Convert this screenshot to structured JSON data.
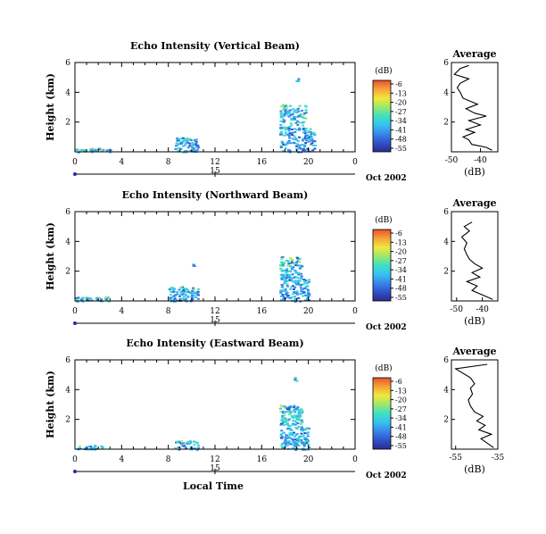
{
  "chart_data": {
    "type": "heatmap",
    "date_label": "Oct 2002",
    "xlabel_bottom": "Local Time",
    "day_label": "15",
    "x_ticks": [
      "0",
      "4",
      "8",
      "12",
      "16",
      "20",
      "0"
    ],
    "y_ticks": [
      "2",
      "4",
      "6"
    ],
    "ylabel": "Height (km)",
    "xlim": [
      0,
      24
    ],
    "ylim": [
      0,
      6
    ],
    "colorbar": {
      "unit": "(dB)",
      "ticks": [
        "-6",
        "-13",
        "-20",
        "-27",
        "-34",
        "-41",
        "-48",
        "-55"
      ],
      "range": [
        -55,
        -6
      ],
      "colors": [
        "#2b2b8f",
        "#2f52c8",
        "#3a86ea",
        "#36c3f0",
        "#3fe0c2",
        "#9be86c",
        "#f0e83a",
        "#f7a33b",
        "#e8502c"
      ]
    },
    "panels": [
      {
        "title": "Echo Intensity (Vertical Beam)",
        "echo_regions": [
          {
            "x_range": [
              0,
              3
            ],
            "y_range": [
              0,
              0.3
            ],
            "level": "-50 to -35 dB"
          },
          {
            "x_range": [
              8.5,
              10.5
            ],
            "y_range": [
              0,
              1.0
            ],
            "level": "-48 to -30 dB"
          },
          {
            "x_range": [
              17.5,
              20.5
            ],
            "y_range": [
              0,
              3.2
            ],
            "level": "-55 to -20 dB"
          },
          {
            "x_range": [
              18.8,
              19.2
            ],
            "y_range": [
              4.8,
              5.0
            ],
            "level": "-50 dB"
          }
        ],
        "average": {
          "title": "Average",
          "xlabel": "(dB)",
          "x_ticks": [
            "-50",
            "-40"
          ],
          "y_ticks": [
            "2",
            "4",
            "6"
          ],
          "xlim": [
            -50,
            -34
          ],
          "ylim": [
            0,
            6
          ],
          "profile": [
            {
              "dB": -36,
              "h": 0.1
            },
            {
              "dB": -38,
              "h": 0.3
            },
            {
              "dB": -43,
              "h": 0.5
            },
            {
              "dB": -44,
              "h": 0.8
            },
            {
              "dB": -46,
              "h": 1.0
            },
            {
              "dB": -42,
              "h": 1.3
            },
            {
              "dB": -45,
              "h": 1.5
            },
            {
              "dB": -40,
              "h": 1.8
            },
            {
              "dB": -44,
              "h": 2.1
            },
            {
              "dB": -38,
              "h": 2.4
            },
            {
              "dB": -42,
              "h": 2.6
            },
            {
              "dB": -45,
              "h": 2.9
            },
            {
              "dB": -41,
              "h": 3.2
            },
            {
              "dB": -46,
              "h": 3.6
            },
            {
              "dB": -47,
              "h": 4.0
            },
            {
              "dB": -48,
              "h": 4.3
            },
            {
              "dB": -47,
              "h": 4.6
            },
            {
              "dB": -44,
              "h": 4.9
            },
            {
              "dB": -49,
              "h": 5.2
            },
            {
              "dB": -47,
              "h": 5.6
            },
            {
              "dB": -44,
              "h": 5.8
            }
          ]
        }
      },
      {
        "title": "Echo Intensity (Northward Beam)",
        "echo_regions": [
          {
            "x_range": [
              0,
              3
            ],
            "y_range": [
              0,
              0.3
            ],
            "level": "-50 to -40 dB"
          },
          {
            "x_range": [
              8.0,
              10.5
            ],
            "y_range": [
              0,
              1.0
            ],
            "level": "-48 to -30 dB"
          },
          {
            "x_range": [
              17.5,
              20.0
            ],
            "y_range": [
              0,
              3.0
            ],
            "level": "-55 to -25 dB"
          },
          {
            "x_range": [
              10.0,
              10.2
            ],
            "y_range": [
              2.4,
              2.5
            ],
            "level": "-50 dB"
          }
        ],
        "average": {
          "title": "Average",
          "xlabel": "(dB)",
          "x_ticks": [
            "-50",
            "-40"
          ],
          "y_ticks": [
            "2",
            "4",
            "6"
          ],
          "xlim": [
            -52,
            -34
          ],
          "ylim": [
            0,
            6
          ],
          "profile": [
            {
              "dB": -36,
              "h": 0.1
            },
            {
              "dB": -40,
              "h": 0.4
            },
            {
              "dB": -44,
              "h": 0.7
            },
            {
              "dB": -42,
              "h": 1.0
            },
            {
              "dB": -46,
              "h": 1.3
            },
            {
              "dB": -41,
              "h": 1.6
            },
            {
              "dB": -44,
              "h": 1.9
            },
            {
              "dB": -40,
              "h": 2.2
            },
            {
              "dB": -43,
              "h": 2.5
            },
            {
              "dB": -45,
              "h": 2.8
            },
            {
              "dB": -46,
              "h": 3.1
            },
            {
              "dB": -47,
              "h": 3.5
            },
            {
              "dB": -46,
              "h": 3.9
            },
            {
              "dB": -48,
              "h": 4.3
            },
            {
              "dB": -45,
              "h": 4.7
            },
            {
              "dB": -47,
              "h": 5.0
            },
            {
              "dB": -44,
              "h": 5.3
            }
          ]
        }
      },
      {
        "title": "Echo Intensity (Eastward Beam)",
        "echo_regions": [
          {
            "x_range": [
              0,
              2.5
            ],
            "y_range": [
              0,
              0.3
            ],
            "level": "-50 to -40 dB"
          },
          {
            "x_range": [
              8.5,
              10.5
            ],
            "y_range": [
              0,
              0.6
            ],
            "level": "-48 to -30 dB"
          },
          {
            "x_range": [
              17.5,
              20.0
            ],
            "y_range": [
              0,
              3.0
            ],
            "level": "-55 to -25 dB"
          },
          {
            "x_range": [
              18.7,
              19.1
            ],
            "y_range": [
              4.6,
              4.9
            ],
            "level": "-50 dB"
          }
        ],
        "average": {
          "title": "Average",
          "xlabel": "(dB)",
          "x_ticks": [
            "-55",
            "-35"
          ],
          "y_ticks": [
            "2",
            "4",
            "6"
          ],
          "xlim": [
            -57,
            -35
          ],
          "ylim": [
            0,
            6
          ],
          "profile": [
            {
              "dB": -37,
              "h": 0.1
            },
            {
              "dB": -40,
              "h": 0.4
            },
            {
              "dB": -43,
              "h": 0.7
            },
            {
              "dB": -38,
              "h": 1.0
            },
            {
              "dB": -44,
              "h": 1.3
            },
            {
              "dB": -41,
              "h": 1.6
            },
            {
              "dB": -45,
              "h": 1.9
            },
            {
              "dB": -42,
              "h": 2.2
            },
            {
              "dB": -46,
              "h": 2.5
            },
            {
              "dB": -48,
              "h": 2.9
            },
            {
              "dB": -49,
              "h": 3.3
            },
            {
              "dB": -47,
              "h": 3.7
            },
            {
              "dB": -48,
              "h": 4.1
            },
            {
              "dB": -46,
              "h": 4.4
            },
            {
              "dB": -48,
              "h": 4.8
            },
            {
              "dB": -55,
              "h": 5.4
            },
            {
              "dB": -40,
              "h": 5.7
            }
          ]
        }
      }
    ]
  }
}
